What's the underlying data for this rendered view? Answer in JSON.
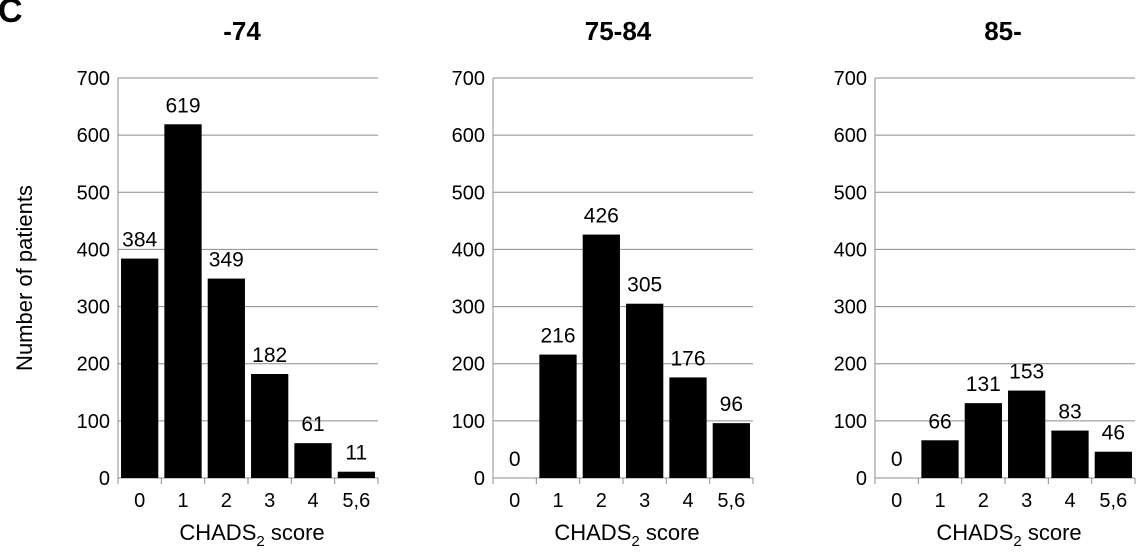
{
  "panel_letter": "C",
  "ylabel": "Number of patients",
  "chart_data": [
    {
      "type": "bar",
      "title": "-74",
      "categories": [
        "0",
        "1",
        "2",
        "3",
        "4",
        "5,6"
      ],
      "values": [
        384,
        619,
        349,
        182,
        61,
        11
      ],
      "xlabel": "CHADS",
      "xlabel_sub": "2",
      "xlabel_suffix": " score",
      "ylabel": "Number of patients",
      "ylim": [
        0,
        700
      ],
      "yticks": [
        0,
        100,
        200,
        300,
        400,
        500,
        600,
        700
      ],
      "grid": true
    },
    {
      "type": "bar",
      "title": "75-84",
      "categories": [
        "0",
        "1",
        "2",
        "3",
        "4",
        "5,6"
      ],
      "values": [
        0,
        216,
        426,
        305,
        176,
        96
      ],
      "xlabel": "CHADS",
      "xlabel_sub": "2",
      "xlabel_suffix": " score",
      "ylim": [
        0,
        700
      ],
      "yticks": [
        0,
        100,
        200,
        300,
        400,
        500,
        600,
        700
      ],
      "grid": true
    },
    {
      "type": "bar",
      "title": "85-",
      "categories": [
        "0",
        "1",
        "2",
        "3",
        "4",
        "5,6"
      ],
      "values": [
        0,
        66,
        131,
        153,
        83,
        46
      ],
      "xlabel": "CHADS",
      "xlabel_sub": "2",
      "xlabel_suffix": " score",
      "ylim": [
        0,
        700
      ],
      "yticks": [
        0,
        100,
        200,
        300,
        400,
        500,
        600,
        700
      ],
      "grid": true
    }
  ]
}
